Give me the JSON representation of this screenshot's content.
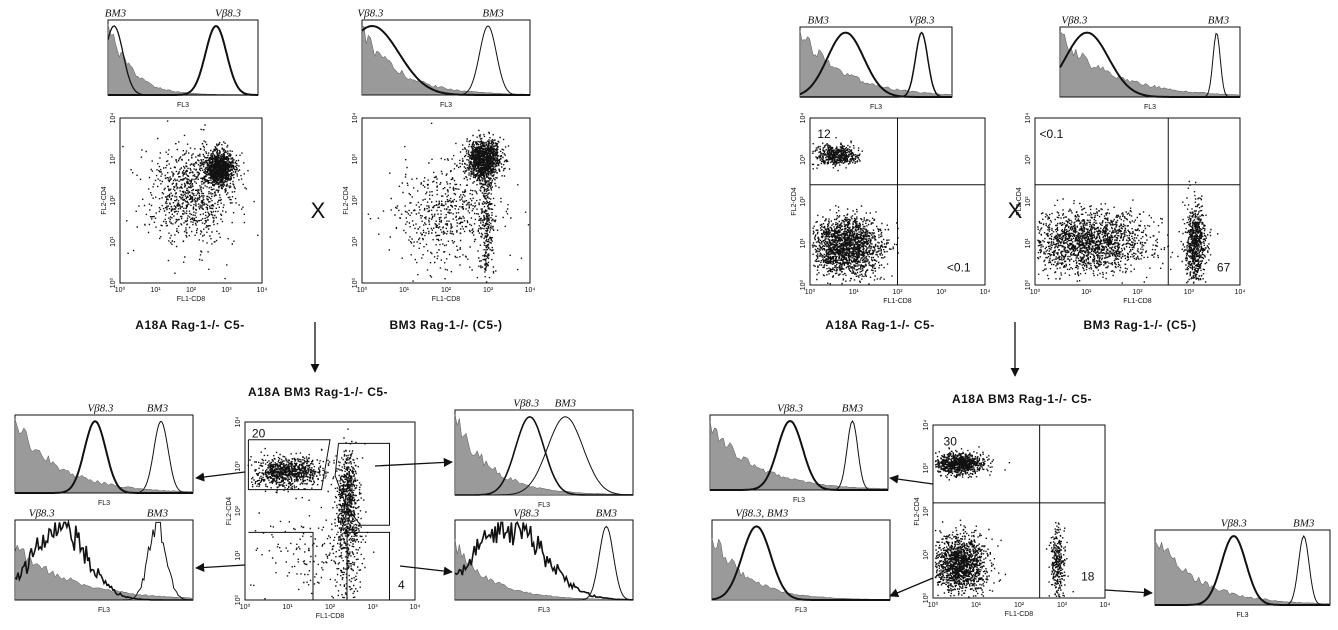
{
  "axes": {
    "fl3": "FL3",
    "fl2": "FL2-CD4",
    "fl1": "FL1-CD8",
    "ticks": [
      "10⁰",
      "10¹",
      "10²",
      "10³",
      "10⁴"
    ]
  },
  "cross_symbol": "X",
  "experiments": [
    {
      "parents": [
        {
          "name": "A18A  Rag-1-/-  C5-",
          "histogram_labels": [
            "BM3",
            "Vβ8.3"
          ]
        },
        {
          "name": "BM3  Rag-1-/-  (C5-)",
          "histogram_labels": [
            "Vβ8.3",
            "BM3"
          ]
        }
      ],
      "offspring": {
        "name": "A18A  BM3  Rag-1-/-  C5-",
        "gate_percentages": [
          20,
          4
        ],
        "histograms": [
          {
            "labels": [
              "Vβ8.3",
              "BM3"
            ]
          },
          {
            "labels": [
              "Vβ8.3",
              "BM3"
            ]
          },
          {
            "labels": [
              "Vβ8.3",
              "BM3"
            ]
          },
          {
            "labels": [
              "Vβ8.3",
              "BM3"
            ]
          }
        ]
      }
    },
    {
      "parents": [
        {
          "name": "A18A  Rag-1-/-  C5-",
          "histogram_labels": [
            "BM3",
            "Vβ8.3"
          ],
          "quadrant_percentages": [
            12,
            "<0.1"
          ]
        },
        {
          "name": "BM3  Rag-1-/-  (C5-)",
          "histogram_labels": [
            "Vβ8.3",
            "BM3"
          ],
          "quadrant_percentages": [
            "<0.1",
            67
          ]
        }
      ],
      "offspring": {
        "name": "A18A  BM3  Rag-1-/-  C5-",
        "quadrant_percentages": [
          30,
          18
        ],
        "histograms": [
          {
            "labels": [
              "Vβ8.3",
              "BM3"
            ]
          },
          {
            "labels": [
              "Vβ8.3, BM3"
            ]
          },
          {
            "labels": [
              "Vβ8.3",
              "BM3"
            ]
          }
        ]
      }
    }
  ]
}
